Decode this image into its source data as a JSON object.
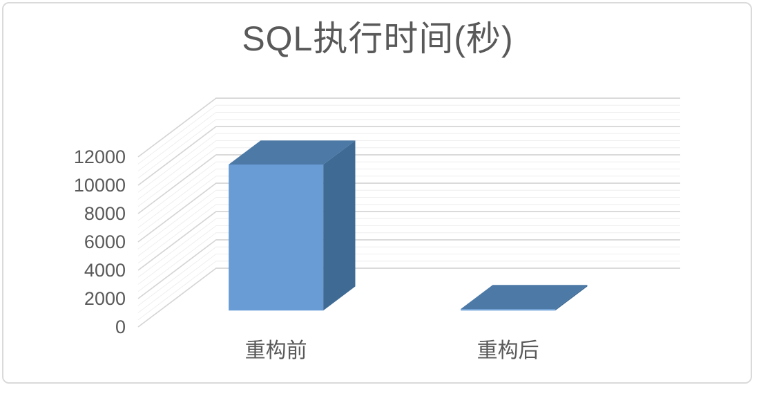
{
  "page": {
    "background": "#ffffff",
    "panel_border_color": "#dadada"
  },
  "chart_data": {
    "type": "bar",
    "projection": "3d-column",
    "title": "SQL执行时间(秒)",
    "categories": [
      "重构前",
      "重构后"
    ],
    "values": [
      10300,
      100
    ],
    "xlabel": "",
    "ylabel": "",
    "ylim": [
      0,
      12000
    ],
    "ytick_step": 2000,
    "ytick_minor_step": 500,
    "yticks": [
      0,
      2000,
      4000,
      6000,
      8000,
      10000,
      12000
    ],
    "grid": "major-and-minor-on-walls",
    "legend_position": "none",
    "colors": {
      "bar_front": "#699cd5",
      "bar_top": "#4c79a6",
      "bar_side": "#3e6a94",
      "major_gridline": "#d5d5d5",
      "minor_gridline": "#eeeeee",
      "title_text": "#595959",
      "axis_text": "#595959"
    }
  }
}
